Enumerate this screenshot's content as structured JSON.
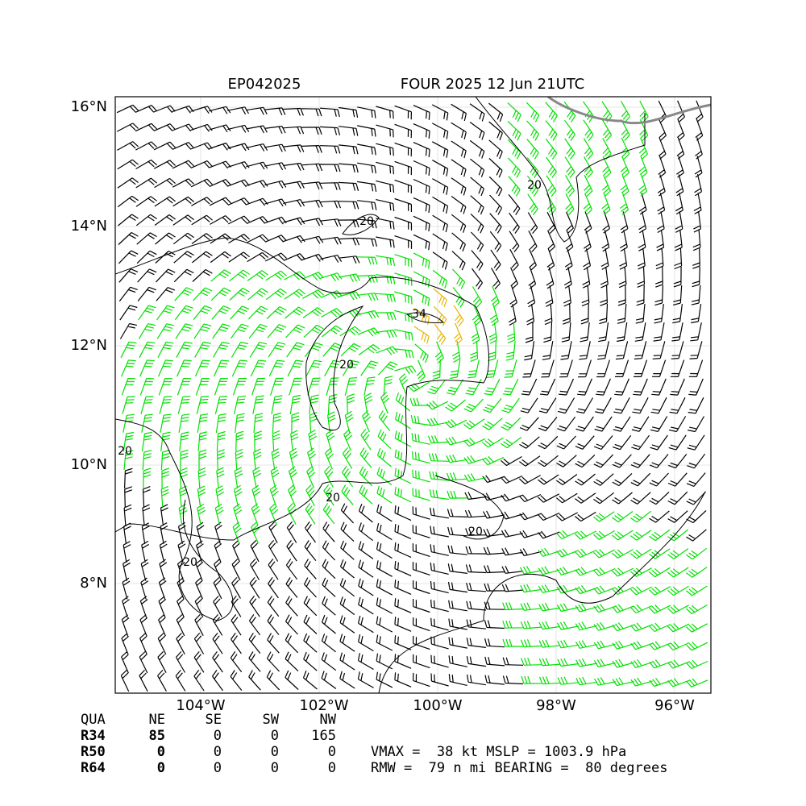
{
  "header": {
    "storm_id": "EP042025",
    "title": "FOUR 2025 12 Jun 21UTC"
  },
  "map": {
    "lat_labels": [
      "16°N",
      "14°N",
      "12°N",
      "10°N",
      "8°N"
    ],
    "lon_labels": [
      "104°W",
      "102°W",
      "100°W",
      "98°W",
      "96°W"
    ],
    "contour_labels": [
      "20",
      "20",
      "20",
      "20",
      "20",
      "20",
      "20",
      "34"
    ]
  },
  "table": {
    "header": [
      "QUA",
      "NE",
      "SE",
      "SW",
      "NW"
    ],
    "rows": [
      [
        "R34",
        "85",
        "0",
        "0",
        "165"
      ],
      [
        "R50",
        "0",
        "0",
        "0",
        "0"
      ],
      [
        "R64",
        "0",
        "0",
        "0",
        "0"
      ]
    ]
  },
  "summary": [
    "VMAX =  38 kt MSLP = 1003.9 hPa",
    "RMW =  79 n mi BEARING =  80 degrees"
  ]
}
